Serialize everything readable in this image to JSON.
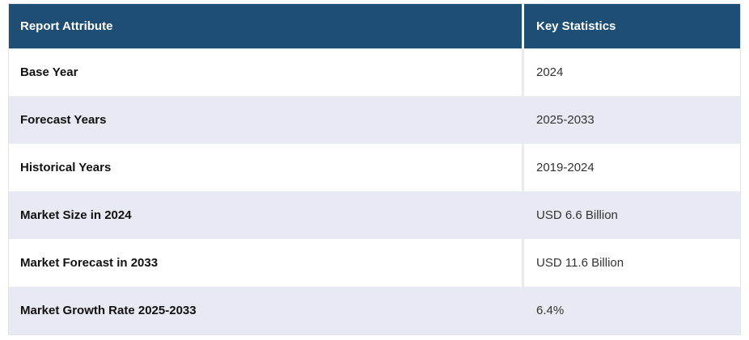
{
  "table": {
    "title": "Report attributes and key statistics table",
    "columns": [
      {
        "label": "Report Attribute"
      },
      {
        "label": "Key Statistics"
      }
    ],
    "rows": [
      {
        "attribute": "Base Year",
        "value": "2024"
      },
      {
        "attribute": "Forecast Years",
        "value": "2025-2033"
      },
      {
        "attribute": "Historical Years",
        "value": "2019-2024"
      },
      {
        "attribute": "Market Size in 2024",
        "value": "USD 6.6 Billion"
      },
      {
        "attribute": "Market Forecast in 2033",
        "value": "USD 11.6 Billion"
      },
      {
        "attribute": "Market Growth Rate 2025-2033",
        "value": "6.4%"
      }
    ],
    "colors": {
      "header_bg": "#1f4e74",
      "header_text": "#ffffff",
      "row_bg": "#ffffff",
      "row_alt_bg": "#e7e9f3",
      "attribute_text": "#111111",
      "value_text": "#333333",
      "divider_header": "#ffffff",
      "divider_body": "#e9e9ee",
      "outer_border": "#e4e4e8"
    }
  }
}
